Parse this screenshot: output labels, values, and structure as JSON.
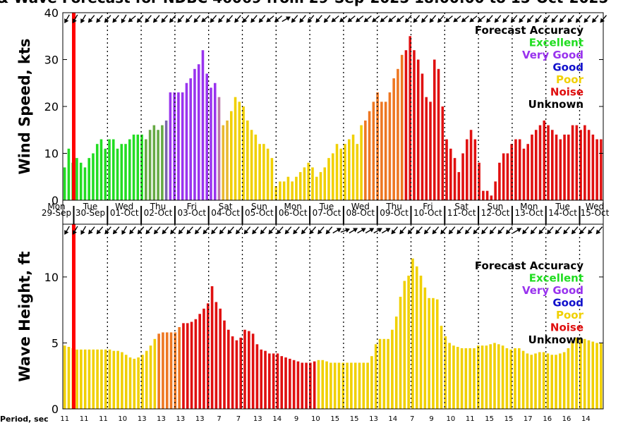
{
  "title": "& Wave Forecast for NDBC 46069 from 29-Sep-2025 18:00:00 to 15-Oct-2025",
  "colors": {
    "excellent": "#22dd22",
    "very_good": "#9933ee",
    "good": "#1111cc",
    "poor": "#f0d000",
    "noise": "#e01010",
    "unknown": "#000000",
    "now_line": "#ff0000"
  },
  "legend": {
    "header": "Forecast Accuracy",
    "items": [
      {
        "label": "Excellent",
        "color": "#22dd22"
      },
      {
        "label": "Very Good",
        "color": "#9933ee"
      },
      {
        "label": "Good",
        "color": "#1111cc"
      },
      {
        "label": "Poor",
        "color": "#f0d000"
      },
      {
        "label": "Noise",
        "color": "#e01010"
      },
      {
        "label": "Unknown",
        "color": "#000000"
      }
    ]
  },
  "days": [
    {
      "day": "Mon",
      "date": "29-Sep"
    },
    {
      "day": "Tue",
      "date": "30-Sep"
    },
    {
      "day": "Wed",
      "date": "01-Oct"
    },
    {
      "day": "Thu",
      "date": "02-Oct"
    },
    {
      "day": "Fri",
      "date": "03-Oct"
    },
    {
      "day": "Sat",
      "date": "04-Oct"
    },
    {
      "day": "Sun",
      "date": "05-Oct"
    },
    {
      "day": "Mon",
      "date": "06-Oct"
    },
    {
      "day": "Tue",
      "date": "07-Oct"
    },
    {
      "day": "Wed",
      "date": "08-Oct"
    },
    {
      "day": "Thu",
      "date": "09-Oct"
    },
    {
      "day": "Fri",
      "date": "10-Oct"
    },
    {
      "day": "Sat",
      "date": "11-Oct"
    },
    {
      "day": "Sun",
      "date": "12-Oct"
    },
    {
      "day": "Mon",
      "date": "13-Oct"
    },
    {
      "day": "Tue",
      "date": "14-Oct"
    },
    {
      "day": "Wed",
      "date": "15-Oct"
    }
  ],
  "period_label": "Period, sec",
  "periods": [
    "11",
    "11",
    "11",
    "10",
    "13",
    "13",
    "13",
    "13",
    "7",
    "7",
    "13",
    "14",
    "9",
    "10",
    "15",
    "15",
    "13",
    "14",
    "7",
    "9",
    "10",
    "11",
    "15",
    "15",
    "17",
    "16",
    "16",
    "14"
  ],
  "chart_data": [
    {
      "type": "bar",
      "ylabel": "Wind Speed, kts",
      "ylim": [
        0,
        40
      ],
      "yticks": [
        0,
        10,
        20,
        30,
        40
      ],
      "x": "3-hourly steps from 29-Sep-2025 18:00",
      "values": [
        7,
        11,
        8,
        9,
        8,
        7,
        9,
        10,
        12,
        13,
        11,
        13,
        13,
        11,
        12,
        12,
        13,
        14,
        14,
        14,
        13,
        15,
        16,
        15,
        16,
        17,
        23,
        23,
        23,
        23,
        25,
        26,
        28,
        29,
        32,
        27,
        24,
        25,
        22,
        16,
        17,
        19,
        22,
        21,
        20,
        17,
        15,
        14,
        12,
        12,
        11,
        9,
        3,
        4,
        4,
        5,
        4,
        5,
        6,
        7,
        8,
        7,
        5,
        6,
        7,
        9,
        10,
        12,
        11,
        12,
        13,
        14,
        12,
        16,
        17,
        19,
        21,
        23,
        21,
        21,
        23,
        26,
        28,
        31,
        32,
        35,
        32,
        30,
        27,
        22,
        21,
        30,
        28,
        20,
        13,
        11,
        9,
        6,
        10,
        13,
        15,
        13,
        8,
        2,
        2,
        1,
        4,
        8,
        10,
        10,
        12,
        13,
        13,
        11,
        12,
        14,
        15,
        16,
        17,
        16,
        15,
        14,
        13,
        14,
        14,
        16,
        16,
        15,
        16,
        15,
        14,
        13,
        13
      ],
      "colors": [
        "E",
        "E",
        "E",
        "E",
        "E",
        "E",
        "E",
        "E",
        "E",
        "E",
        "E",
        "E",
        "E",
        "E",
        "E",
        "E",
        "E",
        "E",
        "E",
        "E",
        "EG",
        "EG",
        "EG",
        "EG",
        "EG",
        "EV",
        "V",
        "V",
        "V",
        "V",
        "V",
        "V",
        "V",
        "V",
        "V",
        "V",
        "V",
        "V",
        "VP",
        "PY",
        "PY",
        "P",
        "P",
        "P",
        "P",
        "P",
        "P",
        "P",
        "P",
        "P",
        "P",
        "P",
        "P",
        "P",
        "P",
        "P",
        "P",
        "P",
        "P",
        "P",
        "P",
        "P",
        "P",
        "P",
        "P",
        "P",
        "P",
        "P",
        "P",
        "P",
        "P",
        "P",
        "P",
        "P",
        "O",
        "O",
        "O",
        "O",
        "O",
        "O",
        "O",
        "O",
        "O",
        "O",
        "N",
        "N",
        "N",
        "N",
        "N",
        "N",
        "N",
        "N",
        "N",
        "N",
        "N",
        "N",
        "N",
        "N",
        "N",
        "N",
        "N",
        "N",
        "N",
        "N",
        "N",
        "N",
        "N",
        "N",
        "N",
        "N",
        "N",
        "N",
        "N",
        "N",
        "N",
        "N",
        "N",
        "N",
        "N",
        "N",
        "N",
        "N",
        "N",
        "N",
        "N",
        "N",
        "N",
        "N",
        "N",
        "N",
        "N",
        "N",
        "N",
        "N"
      ],
      "directions": [
        120,
        120,
        120,
        120,
        120,
        120,
        130,
        130,
        130,
        130,
        130,
        130,
        130,
        130,
        120,
        140,
        140,
        110,
        130,
        130,
        130,
        130,
        130,
        130,
        130,
        130,
        130,
        130,
        130,
        130,
        130,
        130,
        130,
        140,
        140,
        140,
        130,
        130,
        130,
        130,
        130,
        130,
        130,
        130,
        130,
        130,
        130,
        130,
        130,
        140,
        140,
        140,
        140,
        0,
        -30,
        -30,
        130,
        130,
        130,
        130,
        130,
        130,
        130,
        130,
        130,
        140,
        140,
        140,
        140,
        140,
        140,
        140,
        140,
        140,
        140,
        140,
        140,
        140,
        140,
        140,
        140,
        140,
        140,
        140,
        130,
        130,
        130,
        130,
        130,
        130,
        130,
        130,
        130,
        130,
        140,
        140,
        140,
        140,
        140,
        140,
        140,
        140,
        140,
        140,
        130,
        130,
        130,
        130,
        130,
        130,
        130,
        130,
        130,
        130,
        130,
        130,
        130,
        130,
        130,
        130,
        130,
        130,
        130,
        130,
        130,
        130,
        130,
        130,
        130,
        130,
        130,
        130,
        130,
        130,
        130,
        130,
        130,
        130,
        130,
        130,
        130,
        130
      ]
    },
    {
      "type": "bar",
      "ylabel": "Wave Height, ft",
      "ylim": [
        0,
        14
      ],
      "yticks": [
        0,
        5,
        10
      ],
      "x": "3-hourly steps from 29-Sep-2025 18:00",
      "values": [
        4.8,
        4.7,
        4.6,
        4.5,
        4.5,
        4.5,
        4.5,
        4.5,
        4.5,
        4.5,
        4.5,
        4.5,
        4.4,
        4.4,
        4.3,
        4.1,
        3.9,
        3.8,
        3.9,
        4.1,
        4.4,
        4.8,
        5.3,
        5.7,
        5.8,
        5.8,
        5.8,
        5.8,
        6.2,
        6.5,
        6.5,
        6.6,
        6.8,
        7.2,
        7.6,
        8.0,
        9.3,
        8.1,
        7.6,
        6.7,
        6.0,
        5.5,
        5.2,
        5.4,
        6.0,
        5.9,
        5.7,
        4.9,
        4.5,
        4.4,
        4.2,
        4.2,
        4.2,
        4.0,
        3.9,
        3.8,
        3.7,
        3.6,
        3.5,
        3.5,
        3.5,
        3.6,
        3.7,
        3.7,
        3.6,
        3.5,
        3.5,
        3.5,
        3.5,
        3.5,
        3.5,
        3.5,
        3.5,
        3.5,
        3.5,
        4.0,
        4.9,
        5.3,
        5.3,
        5.3,
        6.0,
        7.0,
        8.5,
        9.7,
        10.1,
        11.4,
        10.8,
        10.1,
        9.2,
        8.4,
        8.4,
        8.3,
        6.3,
        5.5,
        5.0,
        4.8,
        4.7,
        4.6,
        4.6,
        4.6,
        4.6,
        4.8,
        4.8,
        4.8,
        4.9,
        5.0,
        4.9,
        4.8,
        4.6,
        4.5,
        4.6,
        4.6,
        4.4,
        4.2,
        4.1,
        4.2,
        4.3,
        4.3,
        4.2,
        4.1,
        4.1,
        4.2,
        4.3,
        4.6,
        5.1,
        5.4,
        5.4,
        5.3,
        5.2,
        5.1,
        5.0,
        5.0
      ],
      "colors": [
        "P",
        "P",
        "P",
        "P",
        "P",
        "P",
        "P",
        "P",
        "P",
        "P",
        "P",
        "P",
        "P",
        "P",
        "P",
        "P",
        "P",
        "P",
        "P",
        "P",
        "P",
        "P",
        "P",
        "O",
        "O",
        "O",
        "O",
        "O",
        "O",
        "N",
        "N",
        "N",
        "N",
        "N",
        "N",
        "N",
        "N",
        "N",
        "N",
        "N",
        "N",
        "N",
        "N",
        "N",
        "N",
        "N",
        "N",
        "N",
        "N",
        "N",
        "N",
        "N",
        "N",
        "N",
        "N",
        "N",
        "N",
        "N",
        "N",
        "N",
        "N",
        "N",
        "P",
        "P",
        "P",
        "P",
        "P",
        "P",
        "P",
        "P",
        "P",
        "P",
        "P",
        "P",
        "P",
        "P",
        "P",
        "P",
        "P",
        "P",
        "P",
        "P",
        "P",
        "P",
        "P",
        "P",
        "P",
        "P",
        "P",
        "P",
        "P",
        "P",
        "P",
        "P",
        "P",
        "P",
        "P",
        "P",
        "P",
        "P",
        "P",
        "P",
        "P",
        "P",
        "P",
        "P",
        "P",
        "P",
        "P",
        "P",
        "P",
        "P",
        "P",
        "P",
        "P",
        "P",
        "P",
        "P",
        "P",
        "P",
        "P",
        "P",
        "P",
        "P",
        "P",
        "P",
        "P",
        "P",
        "P",
        "P",
        "P",
        "P",
        "P",
        "P"
      ],
      "directions": [
        120,
        120,
        120,
        120,
        120,
        120,
        130,
        130,
        130,
        130,
        130,
        130,
        130,
        130,
        120,
        130,
        130,
        110,
        130,
        130,
        130,
        130,
        130,
        130,
        130,
        130,
        130,
        130,
        130,
        130,
        130,
        130,
        130,
        130,
        130,
        130,
        130,
        130,
        130,
        130,
        130,
        130,
        130,
        130,
        130,
        130,
        130,
        130,
        130,
        130,
        130,
        130,
        130,
        130,
        130,
        130,
        130,
        130,
        130,
        130,
        130,
        130,
        130,
        130,
        130,
        -30,
        -30,
        -20,
        -20,
        -30,
        -30,
        -30,
        -30,
        -30,
        -30,
        -30,
        -30,
        -30,
        -30,
        -30,
        130,
        130,
        130,
        130,
        130,
        130,
        130,
        130,
        130,
        130,
        130,
        130,
        130,
        130,
        130,
        130,
        130,
        130,
        130,
        130,
        130,
        130,
        130,
        130,
        130,
        130,
        130,
        130,
        130,
        -30,
        -30,
        -20,
        130,
        130,
        130,
        130,
        130,
        130,
        130,
        130,
        130,
        130,
        130,
        130,
        130,
        130,
        130,
        130,
        130,
        130,
        130,
        130,
        130,
        130,
        130,
        130
      ]
    }
  ]
}
